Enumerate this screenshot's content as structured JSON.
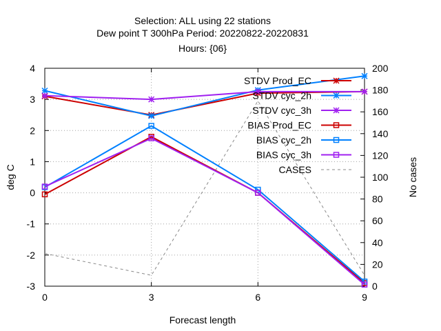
{
  "chart_data": {
    "type": "line",
    "title": [
      "Selection: ALL using    22 stations",
      "Dew point T 300hPa  Period: 20220822-20220831",
      "Hours: {06}"
    ],
    "xlabel": "Forecast length",
    "ylabel": "deg C",
    "y2label": "No cases",
    "x": [
      0,
      3,
      6,
      9
    ],
    "xlim": [
      0,
      9
    ],
    "ylim": [
      -3,
      4
    ],
    "y2lim": [
      0,
      200
    ],
    "xticks": [
      "0",
      "3",
      "6",
      "9"
    ],
    "yticks": [
      "-3",
      "-2",
      "-1",
      "0",
      "1",
      "2",
      "3",
      "4"
    ],
    "y2ticks": [
      "0",
      "20",
      "40",
      "60",
      "80",
      "100",
      "120",
      "140",
      "160",
      "180",
      "200"
    ],
    "grid": true,
    "legend_position": "top-right",
    "series": [
      {
        "name": "STDV Prod_EC",
        "axis": "y",
        "marker": "star",
        "dash": "solid",
        "color": "#cc0000",
        "values": [
          3.1,
          2.5,
          3.2,
          3.25
        ]
      },
      {
        "name": "STDV cyc_2h",
        "axis": "y",
        "marker": "star",
        "dash": "solid",
        "color": "#0080ff",
        "values": [
          3.28,
          2.47,
          3.3,
          3.75
        ]
      },
      {
        "name": "STDV cyc_3h",
        "axis": "y",
        "marker": "star",
        "dash": "solid",
        "color": "#a020f0",
        "values": [
          3.12,
          3.0,
          3.25,
          3.25
        ]
      },
      {
        "name": "BIAS Prod_EC",
        "axis": "y",
        "marker": "square",
        "dash": "solid",
        "color": "#cc0000",
        "values": [
          -0.05,
          1.8,
          0.0,
          -2.9
        ]
      },
      {
        "name": "BIAS cyc_2h",
        "axis": "y",
        "marker": "square",
        "dash": "solid",
        "color": "#0080ff",
        "values": [
          0.18,
          2.15,
          0.1,
          -2.85
        ]
      },
      {
        "name": "BIAS cyc_3h",
        "axis": "y",
        "marker": "square",
        "dash": "solid",
        "color": "#a020f0",
        "values": [
          0.2,
          1.75,
          0.0,
          -2.95
        ]
      },
      {
        "name": "CASES",
        "axis": "y2",
        "marker": "none",
        "dash": "dashed",
        "color": "#888888",
        "values": [
          30,
          10,
          170,
          10
        ]
      }
    ]
  }
}
